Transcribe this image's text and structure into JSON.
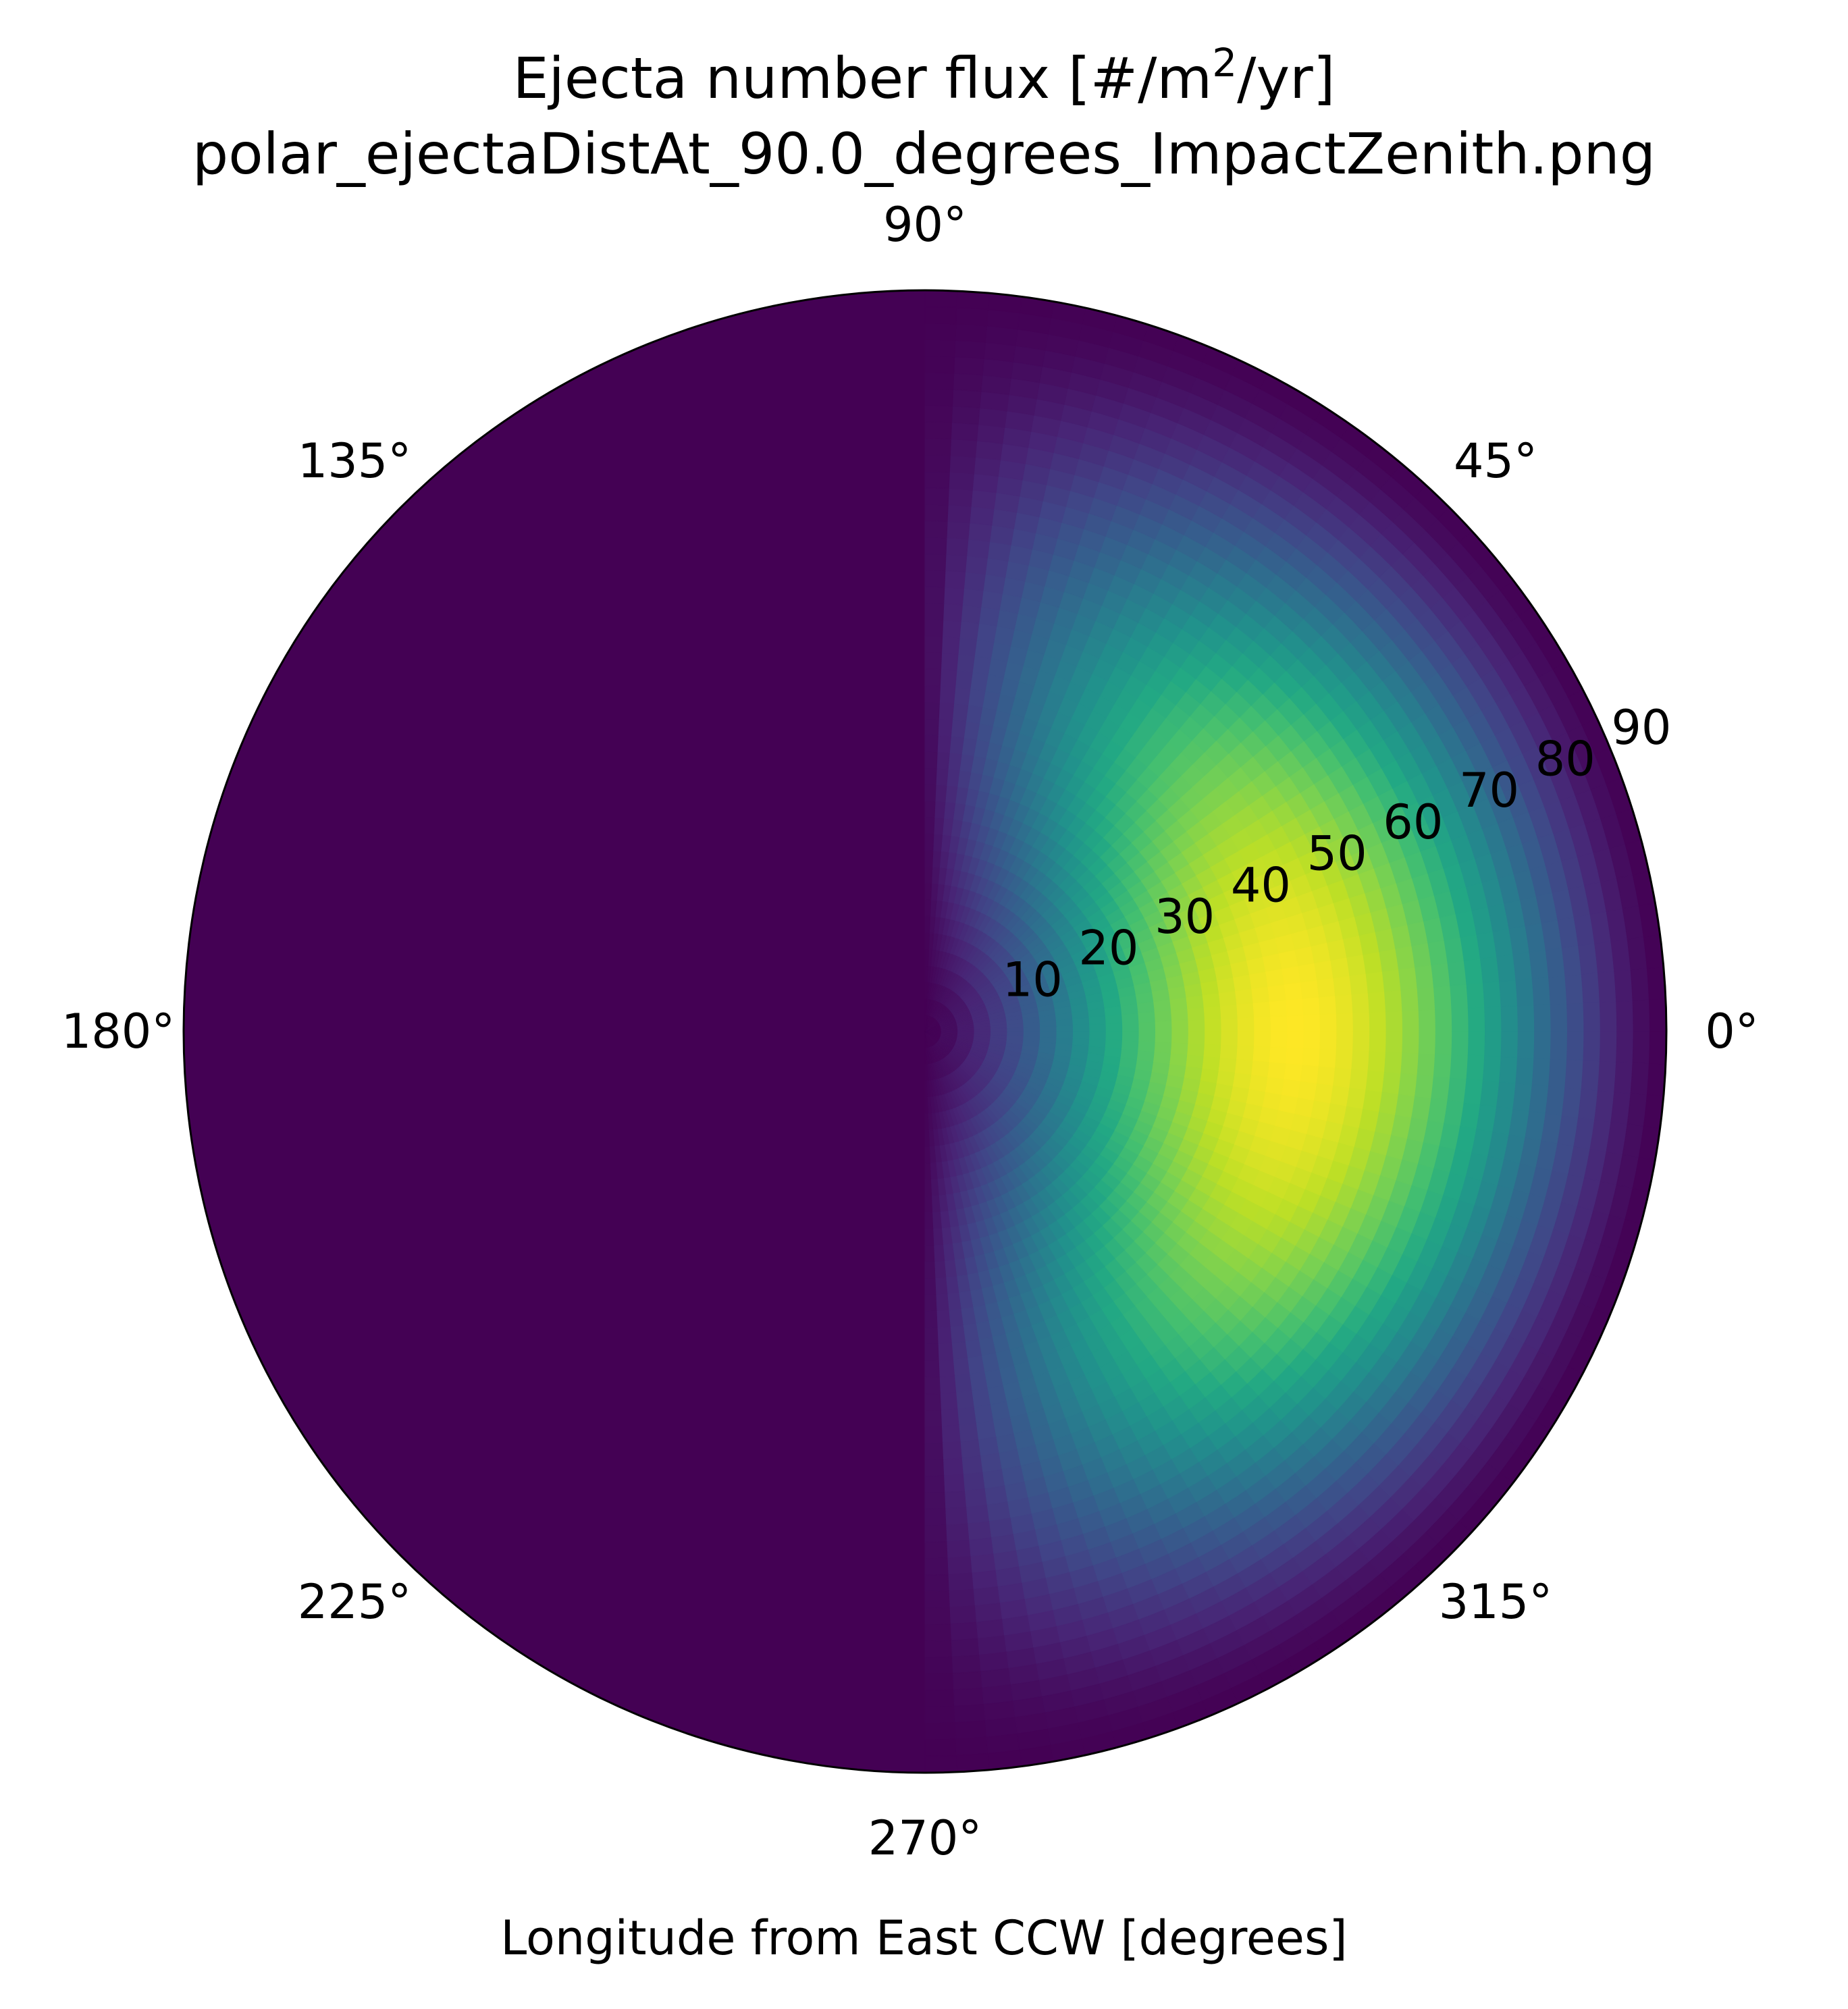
{
  "chart_data": {
    "type": "heatmap",
    "projection": "polar",
    "title": {
      "line1_prefix": "Ejecta number flux [#/m",
      "line1_sup": "2",
      "line1_suffix": "/yr]",
      "line2": "polar_ejectaDistAt_90.0_degrees_ImpactZenith.png"
    },
    "xlabel": "Longitude from East CCW [degrees]",
    "theta_ticks": [
      {
        "deg": 0,
        "label": "0°"
      },
      {
        "deg": 45,
        "label": "45°"
      },
      {
        "deg": 90,
        "label": "90°"
      },
      {
        "deg": 135,
        "label": "135°"
      },
      {
        "deg": 180,
        "label": "180°"
      },
      {
        "deg": 225,
        "label": "225°"
      },
      {
        "deg": 270,
        "label": "270°"
      },
      {
        "deg": 315,
        "label": "315°"
      }
    ],
    "r_ticks": [
      {
        "value": 10,
        "label": "10"
      },
      {
        "value": 20,
        "label": "20"
      },
      {
        "value": 30,
        "label": "30"
      },
      {
        "value": 40,
        "label": "40"
      },
      {
        "value": 50,
        "label": "50"
      },
      {
        "value": 60,
        "label": "60"
      },
      {
        "value": 70,
        "label": "70"
      },
      {
        "value": 80,
        "label": "80"
      },
      {
        "value": 90,
        "label": "90"
      }
    ],
    "r_range": [
      0,
      90
    ],
    "r_label_angle_deg": 22.5,
    "theta_direction": "counterclockwise",
    "theta_zero": "east",
    "colormap": "viridis",
    "grid": false,
    "field": {
      "nonzero_theta_range_deg": [
        -90,
        90
      ],
      "peak_r": 45,
      "peak_theta_deg": 0,
      "peak_value": 1.0,
      "background_value": 0.0
    }
  }
}
